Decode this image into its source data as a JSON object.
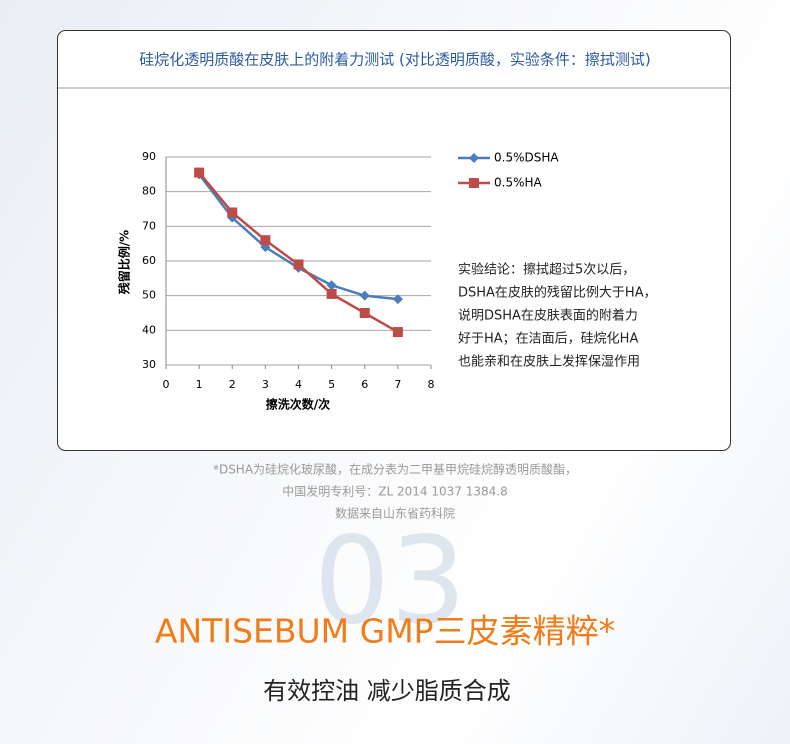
{
  "chart_title": "硅烷化透明质酸在皮肤上的附着力测试 (对比透明质酸，实验条件：擦拭测试)",
  "chart_data": {
    "type": "line",
    "x": [
      1,
      2,
      3,
      4,
      5,
      6,
      7
    ],
    "series": [
      {
        "name": "0.5%DSHA",
        "color": "#4a7ebb",
        "marker": "diamond",
        "values": [
          85,
          72.5,
          64,
          58,
          53,
          50,
          49
        ]
      },
      {
        "name": "0.5%HA",
        "color": "#be4b48",
        "marker": "square",
        "values": [
          85.5,
          74,
          66,
          59,
          50.5,
          45,
          39.5
        ]
      }
    ],
    "xlim": [
      0,
      8
    ],
    "xticks": [
      0,
      1,
      2,
      3,
      4,
      5,
      6,
      7,
      8
    ],
    "ylim": [
      30,
      90
    ],
    "yticks": [
      30,
      40,
      50,
      60,
      70,
      80,
      90
    ],
    "xlabel": "擦洗次数/次",
    "ylabel": "残留比例/%",
    "grid": true,
    "legend": "top-right"
  },
  "conclusion": [
    "实验结论：擦拭超过5次以后，",
    "DSHA在皮肤的残留比例大于HA，",
    "说明DSHA在皮肤表面的附着力",
    "好于HA；在洁面后，硅烷化HA",
    "也能亲和在皮肤上发挥保湿作用"
  ],
  "footnotes": [
    "*DSHA为硅烷化玻尿酸，在成分表为二甲基甲烷硅烷醇透明质酸酯，",
    "中国发明专利号：ZL 2014 1037 1384.8",
    "数据来自山东省药科院"
  ],
  "section_number": "03",
  "heading": "ANTISEBUM GMP三皮素精粹*",
  "subheading": "有效控油 减少脂质合成"
}
